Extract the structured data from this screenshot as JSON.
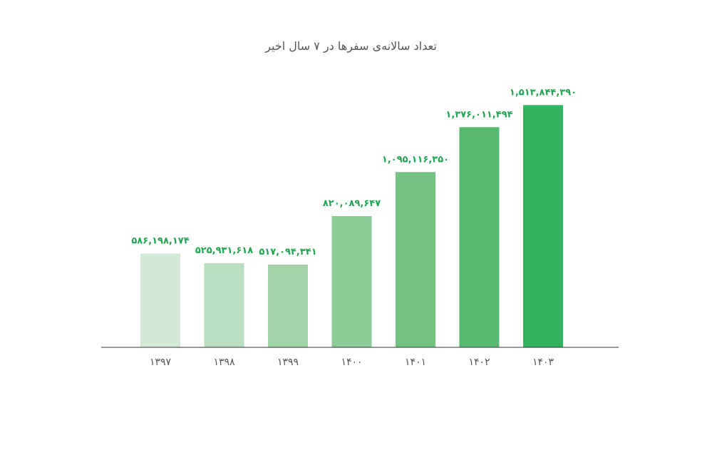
{
  "chart_data": {
    "type": "bar",
    "title": "تعداد سالانه‌ی سفرها در ۷ سال اخیر",
    "categories": [
      "۱۳۹۷",
      "۱۳۹۸",
      "۱۳۹۹",
      "۱۴۰۰",
      "۱۴۰۱",
      "۱۴۰۲",
      "۱۴۰۳"
    ],
    "values": [
      586198174,
      525931618,
      517094341,
      820089647,
      1095116350,
      1376011494,
      1513844390
    ],
    "value_labels": [
      "۵۸۶,۱۹۸,۱۷۴",
      "۵۲۵,۹۳۱,۶۱۸",
      "۵۱۷,۰۹۴,۳۴۱",
      "۸۲۰,۰۸۹,۶۴۷",
      "۱,۰۹۵,۱۱۶,۳۵۰",
      "۱,۳۷۶,۰۱۱,۴۹۴",
      "۱,۵۱۳,۸۴۴,۳۹۰"
    ],
    "bar_colors": [
      "#d1e9d5",
      "#badfc0",
      "#a2d5ab",
      "#8acb96",
      "#73c483",
      "#58ba70",
      "#33b360"
    ],
    "ylim": [
      0,
      1600000000
    ],
    "grid": false,
    "xlabel": "",
    "ylabel": ""
  }
}
